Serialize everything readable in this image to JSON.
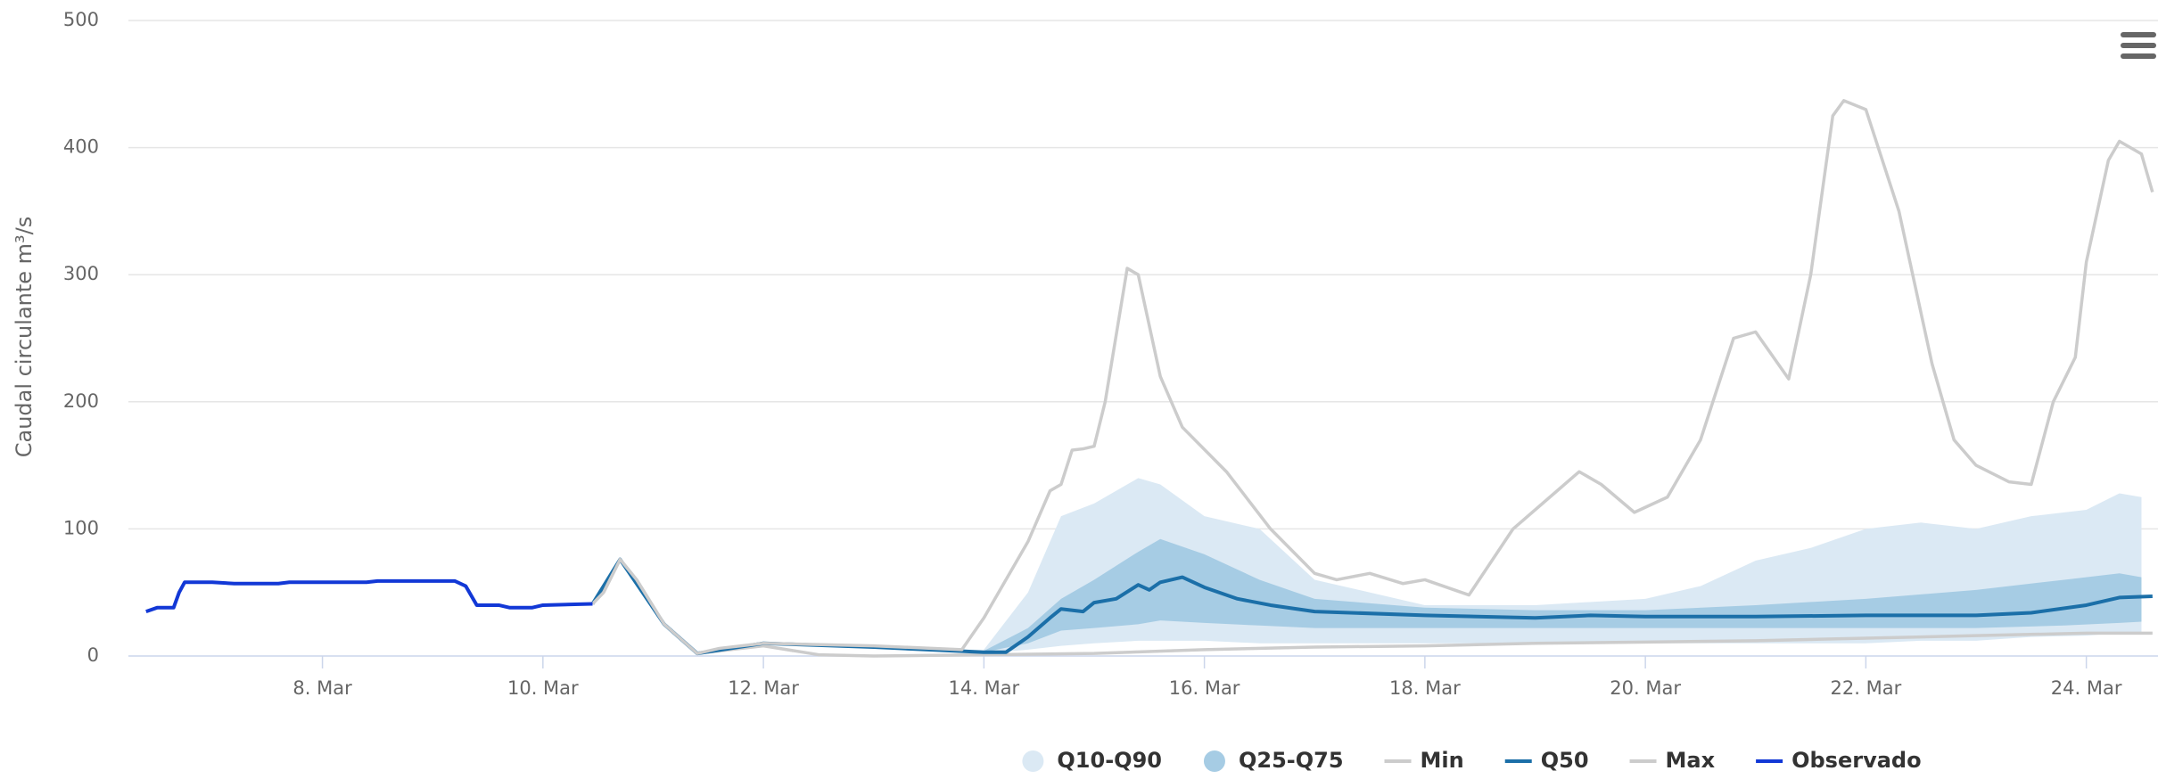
{
  "chart_data": {
    "type": "line",
    "y_axis_label": "Caudal circulante m³/s",
    "xlim": [
      6.24,
      24.65
    ],
    "xticks": [
      {
        "value": 8,
        "label": "8. Mar"
      },
      {
        "value": 10,
        "label": "10. Mar"
      },
      {
        "value": 12,
        "label": "12. Mar"
      },
      {
        "value": 14,
        "label": "14. Mar"
      },
      {
        "value": 16,
        "label": "16. Mar"
      },
      {
        "value": 18,
        "label": "18. Mar"
      },
      {
        "value": 20,
        "label": "20. Mar"
      },
      {
        "value": 22,
        "label": "22. Mar"
      },
      {
        "value": 24,
        "label": "24. Mar"
      }
    ],
    "ylim": [
      0,
      500
    ],
    "yticks": [
      0,
      100,
      200,
      300,
      400,
      500
    ],
    "grid": true,
    "legend": "bottom",
    "series": [
      {
        "name": "Q10-Q90",
        "type": "arearange",
        "color": "#dbe9f4",
        "x": [
          14.0,
          14.4,
          14.7,
          15.0,
          15.4,
          15.6,
          16.0,
          16.5,
          17.0,
          18.0,
          19.0,
          20.0,
          20.5,
          21.0,
          21.5,
          22.0,
          22.5,
          23.0,
          23.5,
          24.0,
          24.3,
          24.5
        ],
        "low": [
          2,
          5,
          8,
          10,
          12,
          12,
          12,
          10,
          10,
          10,
          10,
          10,
          10,
          10,
          10,
          10,
          12,
          12,
          15,
          16,
          18,
          18
        ],
        "high": [
          5,
          50,
          110,
          120,
          140,
          135,
          110,
          100,
          60,
          40,
          40,
          45,
          55,
          75,
          85,
          100,
          105,
          100,
          110,
          115,
          128,
          125
        ]
      },
      {
        "name": "Q25-Q75",
        "type": "arearange",
        "color": "#a6cce4",
        "x": [
          14.0,
          14.4,
          14.7,
          15.0,
          15.4,
          15.6,
          16.0,
          16.5,
          17.0,
          18.0,
          19.0,
          20.0,
          21.0,
          22.0,
          23.0,
          23.8,
          24.3,
          24.5
        ],
        "low": [
          3,
          10,
          20,
          22,
          25,
          28,
          26,
          24,
          22,
          22,
          22,
          22,
          22,
          22,
          22,
          24,
          26,
          27
        ],
        "high": [
          4,
          22,
          45,
          60,
          82,
          92,
          80,
          60,
          45,
          38,
          36,
          36,
          40,
          45,
          52,
          60,
          65,
          62
        ]
      },
      {
        "name": "Min",
        "type": "line",
        "color": "#cccccc",
        "x": [
          10.45,
          10.55,
          10.7,
          10.85,
          11.1,
          11.4,
          11.6,
          12.0,
          12.5,
          13.0,
          14.0,
          15.0,
          16.0,
          17.0,
          18.0,
          19.0,
          20.0,
          21.0,
          22.0,
          23.0,
          24.0,
          24.6
        ],
        "values": [
          41,
          50,
          76,
          60,
          25,
          2,
          4,
          8,
          1,
          0,
          1,
          2,
          5,
          7,
          8,
          10,
          11,
          12,
          14,
          16,
          18,
          18
        ]
      },
      {
        "name": "Q50",
        "type": "line",
        "color": "#1b6fa8",
        "x": [
          10.45,
          10.7,
          11.1,
          11.4,
          12.0,
          13.0,
          14.0,
          14.2,
          14.4,
          14.6,
          14.7,
          14.9,
          15.0,
          15.2,
          15.4,
          15.5,
          15.6,
          15.8,
          16.0,
          16.3,
          16.6,
          17.0,
          18.0,
          19.0,
          19.5,
          20.0,
          21.0,
          22.0,
          23.0,
          23.5,
          24.0,
          24.3,
          24.6
        ],
        "values": [
          41,
          76,
          25,
          2,
          10,
          7,
          3,
          3,
          15,
          30,
          37,
          35,
          42,
          45,
          56,
          52,
          58,
          62,
          54,
          45,
          40,
          35,
          32,
          30,
          32,
          31,
          31,
          32,
          32,
          34,
          40,
          46,
          47
        ]
      },
      {
        "name": "Max",
        "type": "line",
        "color": "#cccccc",
        "x": [
          10.45,
          10.55,
          10.7,
          10.85,
          11.1,
          11.4,
          11.6,
          12.0,
          13.0,
          13.8,
          14.0,
          14.4,
          14.6,
          14.7,
          14.8,
          14.9,
          15.0,
          15.1,
          15.3,
          15.4,
          15.6,
          15.8,
          16.2,
          16.6,
          17.0,
          17.2,
          17.5,
          17.8,
          18.0,
          18.4,
          18.8,
          19.2,
          19.4,
          19.6,
          19.9,
          20.2,
          20.5,
          20.8,
          21.0,
          21.3,
          21.5,
          21.7,
          21.8,
          22.0,
          22.3,
          22.6,
          22.8,
          23.0,
          23.3,
          23.5,
          23.7,
          23.9,
          24.0,
          24.2,
          24.3,
          24.5,
          24.6
        ],
        "values": [
          41,
          50,
          76,
          60,
          25,
          2,
          6,
          10,
          8,
          5,
          30,
          90,
          130,
          135,
          162,
          163,
          165,
          200,
          305,
          300,
          220,
          180,
          145,
          100,
          65,
          60,
          65,
          57,
          60,
          48,
          100,
          130,
          145,
          135,
          113,
          125,
          170,
          250,
          255,
          218,
          300,
          425,
          437,
          430,
          350,
          230,
          170,
          150,
          137,
          135,
          200,
          235,
          310,
          390,
          405,
          395,
          365
        ]
      },
      {
        "name": "Observado",
        "type": "line",
        "color": "#1238d6",
        "x": [
          6.4,
          6.5,
          6.65,
          6.7,
          6.75,
          7.0,
          7.2,
          7.6,
          7.7,
          8.4,
          8.5,
          9.2,
          9.3,
          9.4,
          9.6,
          9.7,
          9.9,
          10.0,
          10.45
        ],
        "values": [
          35,
          38,
          38,
          50,
          58,
          58,
          57,
          57,
          58,
          58,
          59,
          59,
          55,
          40,
          40,
          38,
          38,
          40,
          41
        ]
      }
    ]
  }
}
